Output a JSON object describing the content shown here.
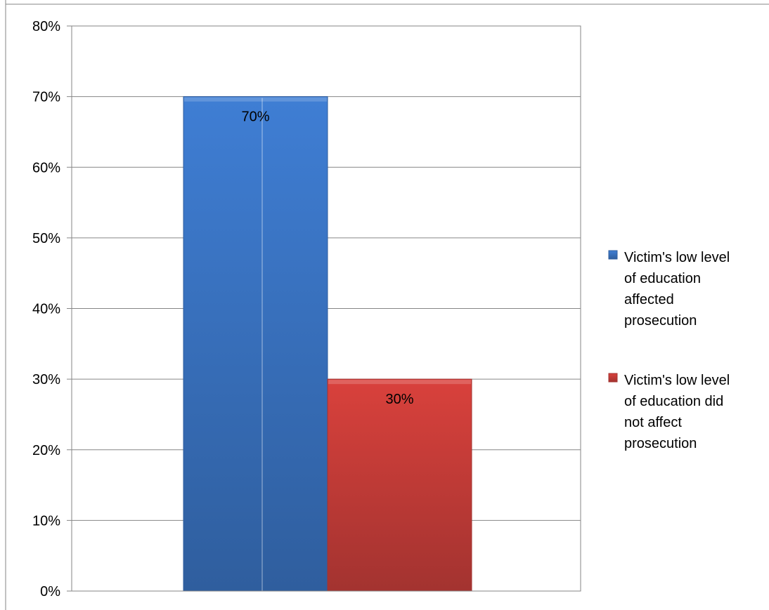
{
  "chart_data": {
    "type": "bar",
    "categories": [
      ""
    ],
    "series": [
      {
        "name": "Victim's low level of education affected prosecution",
        "legend_lines": [
          "Victim's low level",
          "of education",
          "affected",
          "prosecution"
        ],
        "values": [
          70
        ],
        "data_labels": [
          "70%"
        ],
        "color": "#3f7ed4",
        "color_dark": "#2f5e9e"
      },
      {
        "name": "Victim's low level of education did not affect prosecution",
        "legend_lines": [
          "Victim's low level",
          "of education did",
          "not affect",
          "prosecution"
        ],
        "values": [
          30
        ],
        "data_labels": [
          "30%"
        ],
        "color": "#d9413c",
        "color_dark": "#a33330"
      }
    ],
    "y_ticks": [
      "0%",
      "10%",
      "20%",
      "30%",
      "40%",
      "50%",
      "60%",
      "70%",
      "80%"
    ],
    "ylim": [
      0,
      80
    ],
    "y_unit": "%",
    "grid": true,
    "legend_position": "right",
    "title": "",
    "xlabel": "",
    "ylabel": ""
  }
}
